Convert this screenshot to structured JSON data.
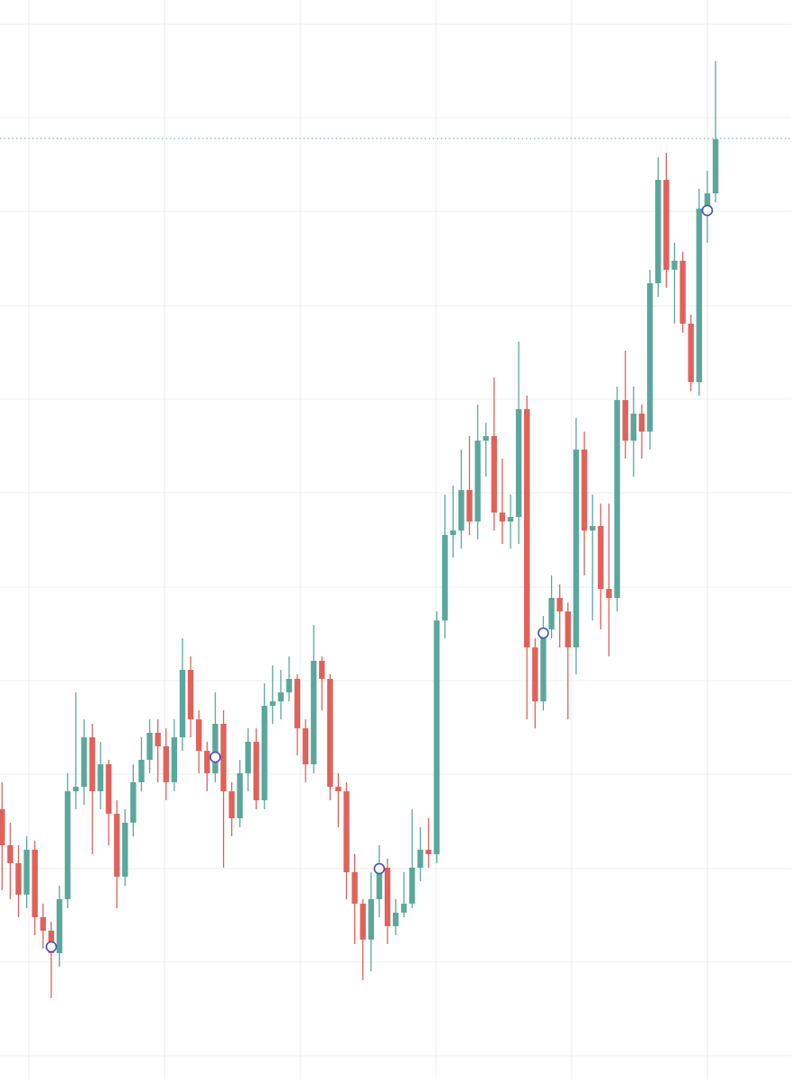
{
  "chart_data": {
    "type": "candlestick",
    "x": [
      0,
      1,
      2,
      3,
      4,
      5,
      6,
      7,
      8,
      9,
      10,
      11,
      12,
      13,
      14,
      15,
      16,
      17,
      18,
      19,
      20,
      21,
      22,
      23,
      24,
      25,
      26,
      27,
      28,
      29,
      30,
      31,
      32,
      33,
      34,
      35,
      36,
      37,
      38,
      39,
      40,
      41,
      42,
      43,
      44,
      45,
      46,
      47,
      48,
      49,
      50,
      51,
      52,
      53,
      54,
      55,
      56,
      57,
      58,
      59,
      60,
      61,
      62,
      63,
      64,
      65,
      66,
      67,
      68,
      69,
      70,
      71,
      72,
      73,
      74,
      75,
      76,
      77,
      78,
      79,
      80,
      81,
      82,
      83,
      84,
      85,
      86,
      87
    ],
    "open": [
      300,
      260,
      240,
      205,
      255,
      180,
      165,
      140,
      200,
      320,
      325,
      380,
      320,
      350,
      295,
      225,
      285,
      330,
      355,
      385,
      370,
      330,
      380,
      455,
      400,
      365,
      340,
      395,
      320,
      290,
      340,
      375,
      310,
      415,
      420,
      430,
      445,
      390,
      350,
      465,
      445,
      325,
      320,
      230,
      195,
      155,
      200,
      235,
      170,
      185,
      195,
      235,
      255,
      250,
      510,
      605,
      610,
      655,
      620,
      710,
      715,
      630,
      620,
      625,
      745,
      480,
      420,
      500,
      535,
      520,
      480,
      700,
      610,
      615,
      545,
      535,
      755,
      710,
      740,
      720,
      885,
      1000,
      900,
      910,
      840,
      775,
      968,
      985
    ],
    "high": [
      330,
      285,
      260,
      270,
      265,
      195,
      175,
      215,
      340,
      430,
      400,
      395,
      375,
      355,
      310,
      300,
      350,
      380,
      400,
      400,
      390,
      400,
      490,
      470,
      410,
      375,
      430,
      410,
      330,
      355,
      390,
      390,
      440,
      460,
      455,
      470,
      450,
      400,
      505,
      470,
      450,
      340,
      330,
      250,
      200,
      230,
      260,
      245,
      200,
      230,
      300,
      280,
      290,
      520,
      650,
      660,
      700,
      715,
      750,
      730,
      780,
      690,
      650,
      820,
      760,
      490,
      515,
      560,
      550,
      530,
      735,
      720,
      650,
      640,
      640,
      770,
      810,
      770,
      750,
      900,
      1025,
      1030,
      930,
      920,
      850,
      990,
      1010,
      1132
    ],
    "low": [
      210,
      200,
      180,
      190,
      160,
      145,
      90,
      125,
      190,
      300,
      305,
      250,
      300,
      260,
      190,
      215,
      270,
      320,
      340,
      330,
      310,
      320,
      365,
      380,
      340,
      320,
      330,
      235,
      270,
      280,
      320,
      300,
      300,
      395,
      400,
      420,
      360,
      330,
      340,
      410,
      310,
      280,
      200,
      150,
      110,
      120,
      180,
      150,
      160,
      180,
      190,
      220,
      235,
      240,
      490,
      580,
      590,
      605,
      600,
      670,
      610,
      595,
      590,
      595,
      400,
      390,
      410,
      490,
      480,
      400,
      450,
      560,
      510,
      500,
      470,
      520,
      690,
      670,
      690,
      700,
      870,
      880,
      840,
      830,
      765,
      760,
      930,
      975
    ],
    "close": [
      260,
      240,
      205,
      255,
      180,
      165,
      140,
      200,
      320,
      325,
      380,
      320,
      350,
      295,
      225,
      285,
      330,
      355,
      385,
      370,
      330,
      380,
      455,
      400,
      365,
      340,
      395,
      320,
      290,
      340,
      375,
      310,
      415,
      420,
      430,
      445,
      390,
      350,
      465,
      445,
      325,
      320,
      230,
      195,
      155,
      200,
      235,
      170,
      185,
      195,
      235,
      255,
      250,
      510,
      605,
      610,
      655,
      620,
      710,
      715,
      630,
      620,
      625,
      745,
      480,
      420,
      500,
      535,
      520,
      480,
      700,
      610,
      615,
      545,
      535,
      755,
      710,
      740,
      720,
      885,
      1000,
      900,
      910,
      840,
      775,
      968,
      985,
      1045
    ],
    "up_color": "#5aa89c",
    "down_color": "#e0625a",
    "markers": {
      "x": [
        6,
        26,
        46,
        66,
        86
      ],
      "values": [
        147,
        358,
        234,
        496,
        966
      ],
      "color": "#3f51b5"
    },
    "price_line": 1046,
    "price_line_color": "#5aa89c",
    "xlim": [
      -0.25,
      96.2
    ],
    "ylim": [
      0,
      1200
    ],
    "xticks": [
      3.26,
      19.81,
      36.36,
      52.9,
      69.45,
      86
    ],
    "yticks": [
      26,
      130,
      234,
      339,
      443,
      547,
      652,
      756,
      860,
      965,
      1069,
      1173
    ],
    "grid": true
  }
}
